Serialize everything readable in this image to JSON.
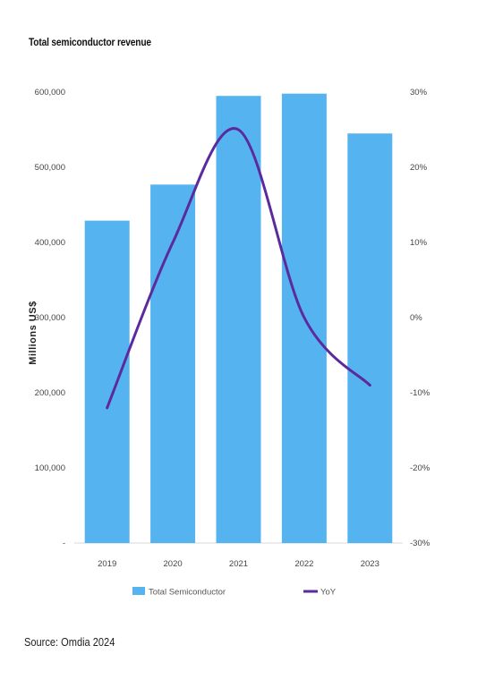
{
  "chart_data": {
    "type": "bar",
    "title": "Total semiconductor revenue",
    "ylabel": "Millions US$",
    "categories": [
      "2019",
      "2020",
      "2021",
      "2022",
      "2023"
    ],
    "series": [
      {
        "name": "Total Semiconductor",
        "kind": "bar",
        "axis": "left",
        "color": "#55b4f0",
        "values": [
          429000,
          477000,
          595000,
          598000,
          545000
        ]
      },
      {
        "name": "YoY",
        "kind": "line",
        "axis": "right",
        "color": "#5b2a9e",
        "values": [
          -12,
          10,
          25,
          0,
          -9
        ]
      }
    ],
    "ylim": [
      0,
      600000
    ],
    "y_ticks": [
      "-",
      "100,000",
      "200,000",
      "300,000",
      "400,000",
      "500,000",
      "600,000"
    ],
    "y2lim": [
      -30,
      30
    ],
    "y2_ticks": [
      "-30%",
      "-20%",
      "-10%",
      "0%",
      "10%",
      "20%",
      "30%"
    ],
    "grid": false,
    "legend_position": "bottom"
  },
  "source": "Source: Omdia 2024"
}
